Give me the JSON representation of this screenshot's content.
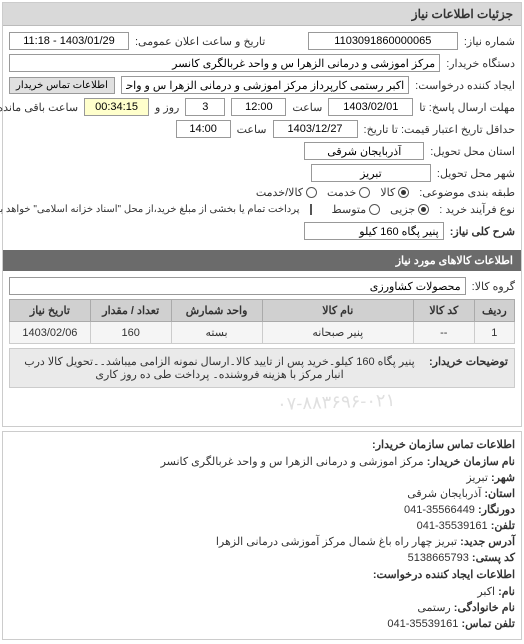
{
  "panel_title": "جزئیات اطلاعات نیاز",
  "fields": {
    "request_no_label": "شماره نیاز:",
    "request_no": "1103091860000065",
    "public_time_label": "تاریخ و ساعت اعلان عمومی:",
    "public_time": "1403/01/29 - 11:18",
    "buyer_org_label": "دستگاه خریدار:",
    "buyer_org": "مرکز اموزشی و درمانی الزهرا س و واحد غربالگری کانسر",
    "creator_label": "ایجاد کننده درخواست:",
    "creator": "اکبر رستمی کارپرداز مرکز اموزشی و درمانی الزهرا س و واحد غربالگری کانسر",
    "buyer_contact_btn": "اطلاعات تماس خریدار",
    "deadline_label": "مهلت ارسال پاسخ: تا",
    "deadline_date": "1403/02/01",
    "deadline_hour_label": "ساعت",
    "deadline_hour": "12:00",
    "remain_day": "3",
    "remain_day_label": "روز و",
    "remain_time": "00:34:15",
    "remain_time_label": "ساعت باقی مانده",
    "valid_label": "حداقل تاریخ اعتبار قیمت: تا تاریخ:",
    "valid_date": "1403/12/27",
    "valid_hour_label": "ساعت",
    "valid_hour": "14:00",
    "province_label": "استان محل تحویل:",
    "province": "آذربایجان شرقی",
    "city_label": "شهر محل تحویل:",
    "city": "تبریز",
    "subject_class_label": "طبقه بندی موضوعی:",
    "radio_kala": "کالا",
    "radio_khadamat": "خدمت",
    "radio_kala_khadamat": "کالا/خدمت",
    "buy_type_label": "نوع فرآیند خرید :",
    "buy_small": "جزیی",
    "buy_med": "متوسط",
    "pay_note": "پرداخت تمام یا بخشی از مبلغ خرید،از محل \"اسناد خزانه اسلامی\" خواهد بود.",
    "need_title_label": "شرح کلی نیاز:",
    "need_title": "پنیر پگاه 160 کیلو"
  },
  "items_header": "اطلاعات کالاهای مورد نیاز",
  "group_label": "گروه کالا:",
  "group_value": "محصولات کشاورزی",
  "table": {
    "columns": [
      "ردیف",
      "کد کالا",
      "نام کالا",
      "واحد شمارش",
      "تعداد / مقدار",
      "تاریخ نیاز"
    ],
    "rows": [
      [
        "1",
        "--",
        "پنیر صبحانه",
        "بسته",
        "160",
        "1403/02/06"
      ]
    ],
    "col_widths": [
      "8%",
      "12%",
      "30%",
      "18%",
      "16%",
      "16%"
    ]
  },
  "desc_label": "توضیحات خریدار:",
  "desc_text": "پنیر پگاه 160 کیلو۔خرید پس از تایید کالا۔ارسال نمونه الزامی میباشد۔۔تحویل کالا درب انبار مرکز با هزینه فروشنده۔ پرداخت طی ده روز کاری",
  "watermark": "۰۷-۸۸۳۶۹۶-۰۲۱",
  "contact": {
    "title": "اطلاعات تماس سازمان خریدار:",
    "org_label": "نام سازمان خریدار:",
    "org": "مرکز اموزشی و درمانی الزهرا س و واحد غربالگری کانسر",
    "city_label": "شهر:",
    "city": "تبریز",
    "province_label": "استان:",
    "province": "آذربایجان شرقی",
    "fax_label": "دورنگار:",
    "fax": "35566449-041",
    "phone_label": "تلفن:",
    "phone": "35539161-041",
    "address_label": "آدرس جدید:",
    "address": "تبریز چهار راه باغ شمال مرکز آموزشی درمانی الزهرا",
    "postal_label": "کد پستی:",
    "postal": "5138665793",
    "creator_title": "اطلاعات ایجاد کننده درخواست:",
    "name_label": "نام:",
    "name": "اکبر",
    "surname_label": "نام خانوادگی:",
    "surname": "رستمی",
    "phone2_label": "تلفن تماس:",
    "phone2": "35539161-041"
  },
  "colors": {
    "panel_header_bg": "#d9d9d9",
    "sub_header_bg": "#6b6b6b",
    "th_bg": "#d0d0d0",
    "td_bg": "#f5f5f5",
    "border": "#cccccc"
  }
}
